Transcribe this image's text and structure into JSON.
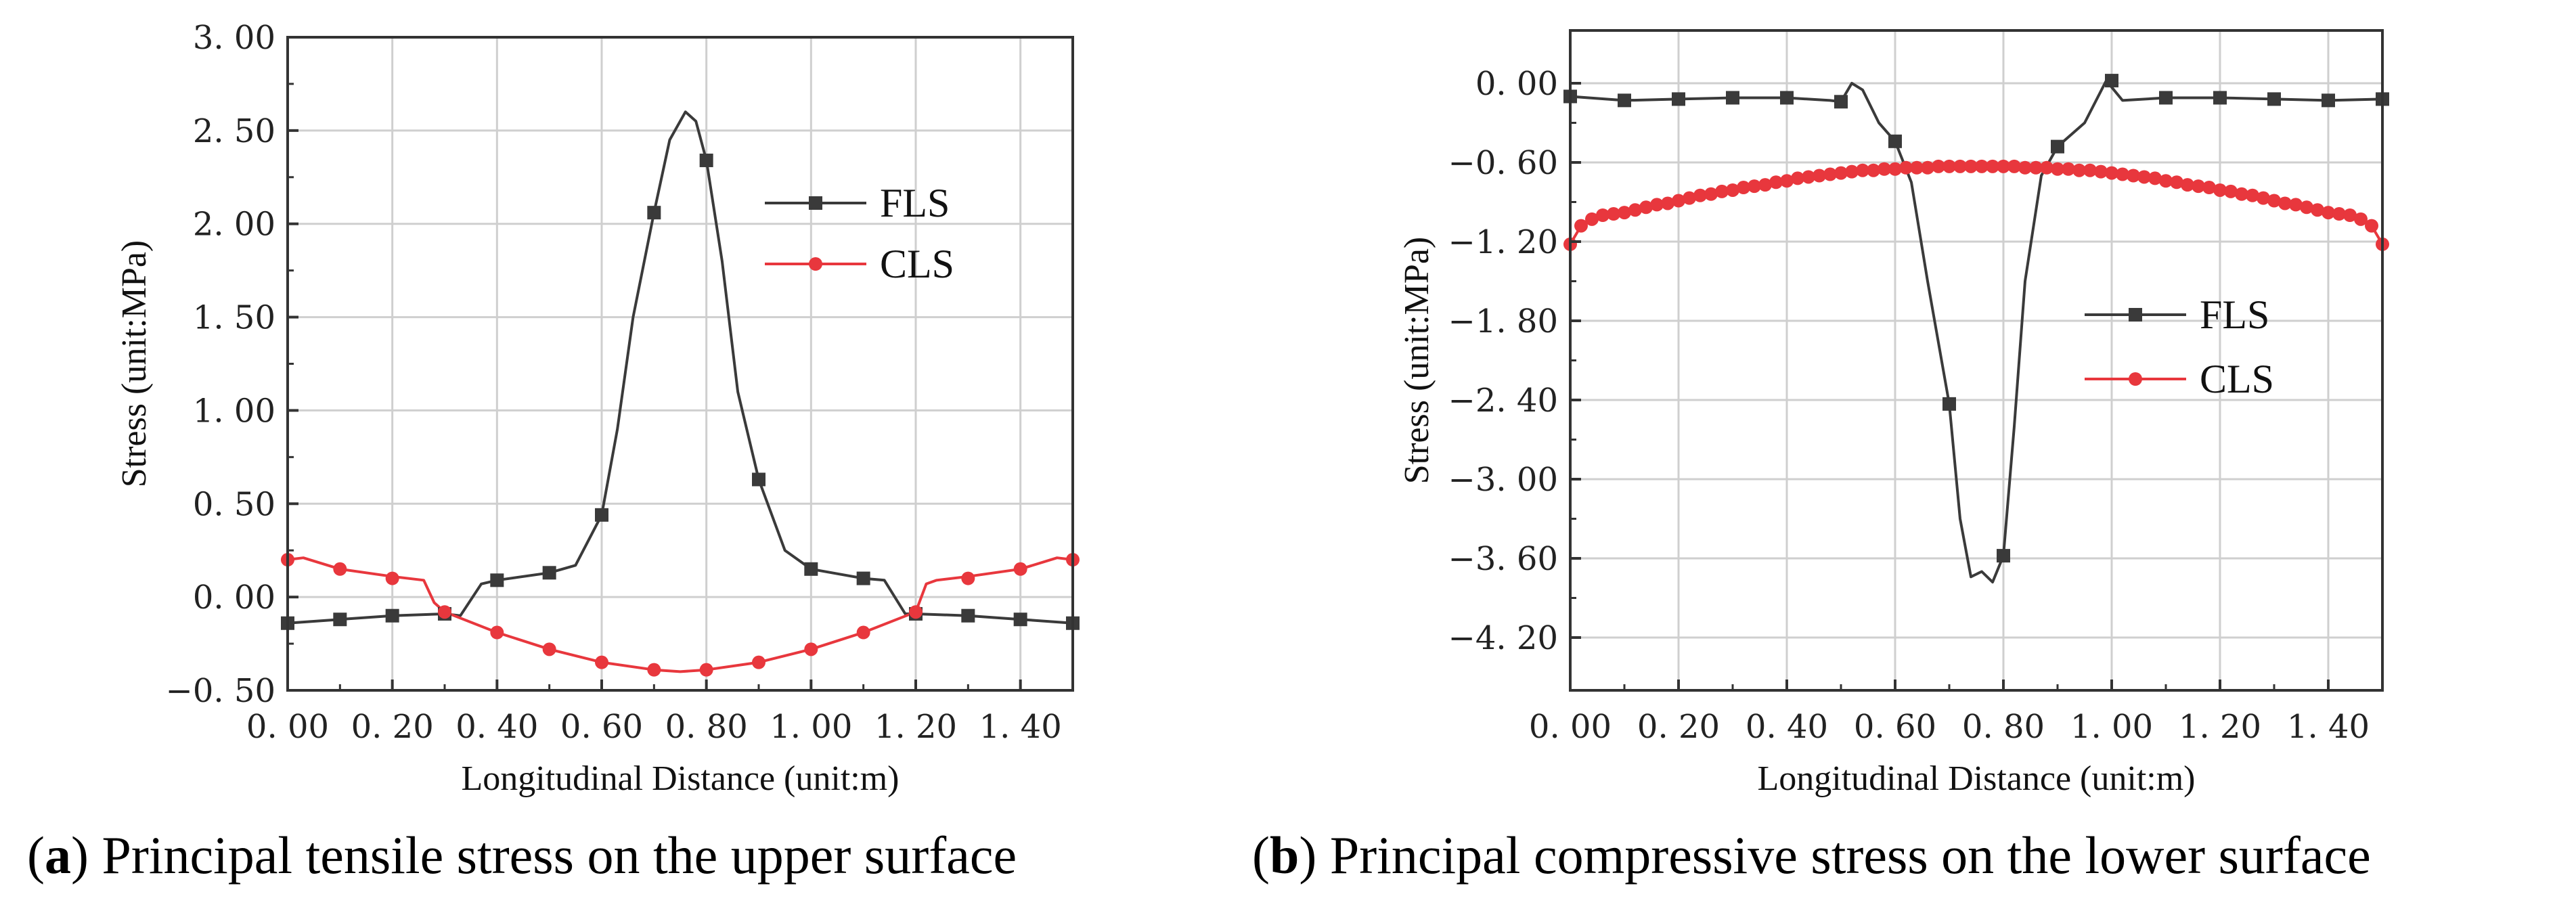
{
  "chart_data": [
    {
      "type": "line",
      "panel_letter": "a",
      "caption": "Principal tensile stress on the upper surface",
      "xlabel": "Longitudinal Distance (unit:m)",
      "ylabel": "Stress (unit:MPa)",
      "xlim": [
        0,
        1.5
      ],
      "ylim": [
        -0.5,
        3.0
      ],
      "xticks": [
        0,
        0.2,
        0.4,
        0.6,
        0.8,
        1.0,
        1.2,
        1.4
      ],
      "xtick_labels": [
        "0. 00",
        "0. 20",
        "0. 40",
        "0. 60",
        "0. 80",
        "1. 00",
        "1. 20",
        "1. 40"
      ],
      "yticks": [
        -0.5,
        0,
        0.5,
        1.0,
        1.5,
        2.0,
        2.5,
        3.0
      ],
      "ytick_labels": [
        "−0. 50",
        "0. 00",
        "0. 50",
        "1. 00",
        "1. 50",
        "2. 00",
        "2. 50",
        "3. 00"
      ],
      "grid": true,
      "legend_position": "upper-right",
      "series": [
        {
          "name": "FLS",
          "color": "#3a3a3a",
          "marker": "square",
          "markers": [
            [
              0.0,
              -0.14
            ],
            [
              0.1,
              -0.12
            ],
            [
              0.2,
              -0.1
            ],
            [
              0.3,
              -0.09
            ],
            [
              0.4,
              0.09
            ],
            [
              0.5,
              0.13
            ],
            [
              0.6,
              0.44
            ],
            [
              0.7,
              2.06
            ],
            [
              0.8,
              2.34
            ],
            [
              0.9,
              0.63
            ],
            [
              1.0,
              0.15
            ],
            [
              1.1,
              0.1
            ],
            [
              1.2,
              -0.09
            ],
            [
              1.3,
              -0.1
            ],
            [
              1.4,
              -0.12
            ],
            [
              1.5,
              -0.14
            ]
          ],
          "curve": [
            [
              0.0,
              -0.14
            ],
            [
              0.1,
              -0.12
            ],
            [
              0.2,
              -0.1
            ],
            [
              0.3,
              -0.09
            ],
            [
              0.33,
              -0.1
            ],
            [
              0.37,
              0.07
            ],
            [
              0.4,
              0.09
            ],
            [
              0.5,
              0.13
            ],
            [
              0.55,
              0.17
            ],
            [
              0.6,
              0.44
            ],
            [
              0.63,
              0.9
            ],
            [
              0.66,
              1.5
            ],
            [
              0.7,
              2.06
            ],
            [
              0.73,
              2.45
            ],
            [
              0.76,
              2.6
            ],
            [
              0.78,
              2.55
            ],
            [
              0.8,
              2.34
            ],
            [
              0.83,
              1.8
            ],
            [
              0.86,
              1.1
            ],
            [
              0.9,
              0.63
            ],
            [
              0.95,
              0.25
            ],
            [
              1.0,
              0.15
            ],
            [
              1.1,
              0.1
            ],
            [
              1.14,
              0.09
            ],
            [
              1.18,
              -0.09
            ],
            [
              1.2,
              -0.09
            ],
            [
              1.3,
              -0.1
            ],
            [
              1.4,
              -0.12
            ],
            [
              1.5,
              -0.14
            ]
          ]
        },
        {
          "name": "CLS",
          "color": "#e8373d",
          "marker": "circle",
          "markers": [
            [
              0.0,
              0.2
            ],
            [
              0.1,
              0.15
            ],
            [
              0.2,
              0.1
            ],
            [
              0.3,
              -0.08
            ],
            [
              0.4,
              -0.19
            ],
            [
              0.5,
              -0.28
            ],
            [
              0.6,
              -0.35
            ],
            [
              0.7,
              -0.39
            ],
            [
              0.8,
              -0.39
            ],
            [
              0.9,
              -0.35
            ],
            [
              1.0,
              -0.28
            ],
            [
              1.1,
              -0.19
            ],
            [
              1.2,
              -0.08
            ],
            [
              1.3,
              0.1
            ],
            [
              1.4,
              0.15
            ],
            [
              1.5,
              0.2
            ]
          ],
          "curve": [
            [
              0.0,
              0.2
            ],
            [
              0.03,
              0.21
            ],
            [
              0.1,
              0.15
            ],
            [
              0.2,
              0.11
            ],
            [
              0.26,
              0.09
            ],
            [
              0.28,
              -0.03
            ],
            [
              0.3,
              -0.08
            ],
            [
              0.4,
              -0.19
            ],
            [
              0.5,
              -0.28
            ],
            [
              0.6,
              -0.35
            ],
            [
              0.7,
              -0.39
            ],
            [
              0.75,
              -0.4
            ],
            [
              0.8,
              -0.39
            ],
            [
              0.9,
              -0.35
            ],
            [
              1.0,
              -0.28
            ],
            [
              1.1,
              -0.19
            ],
            [
              1.2,
              -0.08
            ],
            [
              1.22,
              0.07
            ],
            [
              1.24,
              0.09
            ],
            [
              1.3,
              0.11
            ],
            [
              1.4,
              0.15
            ],
            [
              1.47,
              0.21
            ],
            [
              1.5,
              0.2
            ]
          ]
        }
      ]
    },
    {
      "type": "line",
      "panel_letter": "b",
      "caption": "Principal compressive stress on the lower surface",
      "xlabel": "Longitudinal Distance (unit:m)",
      "ylabel": "Stress (unit:MPa)",
      "xlim": [
        0,
        1.5
      ],
      "ylim": [
        -4.6,
        0.4
      ],
      "xticks": [
        0,
        0.2,
        0.4,
        0.6,
        0.8,
        1.0,
        1.2,
        1.4
      ],
      "xtick_labels": [
        "0. 00",
        "0. 20",
        "0. 40",
        "0. 60",
        "0. 80",
        "1. 00",
        "1. 20",
        "1. 40"
      ],
      "yticks": [
        0,
        -0.6,
        -1.2,
        -1.8,
        -2.4,
        -3.0,
        -3.6,
        -4.2
      ],
      "ytick_labels": [
        "0. 00",
        "−0. 60",
        "−1. 20",
        "−1. 80",
        "−2. 40",
        "−3. 00",
        "−3. 60",
        "−4. 20"
      ],
      "grid": true,
      "legend_position": "center-right",
      "series": [
        {
          "name": "FLS",
          "color": "#3a3a3a",
          "marker": "square",
          "markers": [
            [
              0.0,
              -0.1
            ],
            [
              0.1,
              -0.13
            ],
            [
              0.2,
              -0.12
            ],
            [
              0.3,
              -0.11
            ],
            [
              0.4,
              -0.11
            ],
            [
              0.5,
              -0.14
            ],
            [
              0.6,
              -0.44
            ],
            [
              0.7,
              -2.43
            ],
            [
              0.8,
              -3.58
            ],
            [
              0.9,
              -0.48
            ],
            [
              1.0,
              0.02
            ],
            [
              1.1,
              -0.11
            ],
            [
              1.2,
              -0.11
            ],
            [
              1.3,
              -0.12
            ],
            [
              1.4,
              -0.13
            ],
            [
              1.5,
              -0.12
            ]
          ],
          "curve": [
            [
              0.0,
              -0.1
            ],
            [
              0.1,
              -0.13
            ],
            [
              0.2,
              -0.12
            ],
            [
              0.3,
              -0.11
            ],
            [
              0.4,
              -0.11
            ],
            [
              0.48,
              -0.13
            ],
            [
              0.5,
              -0.14
            ],
            [
              0.52,
              0.0
            ],
            [
              0.54,
              -0.05
            ],
            [
              0.57,
              -0.3
            ],
            [
              0.6,
              -0.44
            ],
            [
              0.63,
              -0.75
            ],
            [
              0.66,
              -1.5
            ],
            [
              0.7,
              -2.43
            ],
            [
              0.72,
              -3.3
            ],
            [
              0.74,
              -3.74
            ],
            [
              0.76,
              -3.7
            ],
            [
              0.78,
              -3.78
            ],
            [
              0.8,
              -3.58
            ],
            [
              0.82,
              -2.6
            ],
            [
              0.84,
              -1.5
            ],
            [
              0.87,
              -0.7
            ],
            [
              0.9,
              -0.48
            ],
            [
              0.95,
              -0.3
            ],
            [
              0.99,
              0.02
            ],
            [
              1.02,
              -0.13
            ],
            [
              1.1,
              -0.11
            ],
            [
              1.2,
              -0.11
            ],
            [
              1.3,
              -0.12
            ],
            [
              1.4,
              -0.13
            ],
            [
              1.5,
              -0.12
            ]
          ]
        },
        {
          "name": "CLS",
          "color": "#e8373d",
          "marker": "circle",
          "markers": [
            [
              0.0,
              -1.22
            ],
            [
              0.02,
              -1.08
            ],
            [
              0.04,
              -1.03
            ],
            [
              0.06,
              -1.0
            ],
            [
              0.08,
              -0.99
            ],
            [
              0.1,
              -0.98
            ],
            [
              0.12,
              -0.96
            ],
            [
              0.14,
              -0.94
            ],
            [
              0.16,
              -0.92
            ],
            [
              0.18,
              -0.91
            ],
            [
              0.2,
              -0.89
            ],
            [
              0.22,
              -0.87
            ],
            [
              0.24,
              -0.85
            ],
            [
              0.26,
              -0.84
            ],
            [
              0.28,
              -0.82
            ],
            [
              0.3,
              -0.81
            ],
            [
              0.32,
              -0.79
            ],
            [
              0.34,
              -0.78
            ],
            [
              0.36,
              -0.77
            ],
            [
              0.38,
              -0.75
            ],
            [
              0.4,
              -0.74
            ],
            [
              0.42,
              -0.72
            ],
            [
              0.44,
              -0.71
            ],
            [
              0.46,
              -0.7
            ],
            [
              0.48,
              -0.69
            ],
            [
              0.5,
              -0.68
            ],
            [
              0.52,
              -0.67
            ],
            [
              0.54,
              -0.66
            ],
            [
              0.56,
              -0.66
            ],
            [
              0.58,
              -0.65
            ],
            [
              0.6,
              -0.65
            ],
            [
              0.62,
              -0.64
            ],
            [
              0.64,
              -0.64
            ],
            [
              0.66,
              -0.64
            ],
            [
              0.68,
              -0.63
            ],
            [
              0.7,
              -0.63
            ],
            [
              0.72,
              -0.63
            ],
            [
              0.74,
              -0.63
            ],
            [
              0.76,
              -0.63
            ],
            [
              0.78,
              -0.63
            ],
            [
              0.8,
              -0.63
            ],
            [
              0.82,
              -0.63
            ],
            [
              0.84,
              -0.64
            ],
            [
              0.86,
              -0.64
            ],
            [
              0.88,
              -0.64
            ],
            [
              0.9,
              -0.65
            ],
            [
              0.92,
              -0.65
            ],
            [
              0.94,
              -0.66
            ],
            [
              0.96,
              -0.66
            ],
            [
              0.98,
              -0.67
            ],
            [
              1.0,
              -0.68
            ],
            [
              1.02,
              -0.69
            ],
            [
              1.04,
              -0.7
            ],
            [
              1.06,
              -0.71
            ],
            [
              1.08,
              -0.72
            ],
            [
              1.1,
              -0.74
            ],
            [
              1.12,
              -0.75
            ],
            [
              1.14,
              -0.77
            ],
            [
              1.16,
              -0.78
            ],
            [
              1.18,
              -0.79
            ],
            [
              1.2,
              -0.81
            ],
            [
              1.22,
              -0.82
            ],
            [
              1.24,
              -0.84
            ],
            [
              1.26,
              -0.85
            ],
            [
              1.28,
              -0.87
            ],
            [
              1.3,
              -0.89
            ],
            [
              1.32,
              -0.91
            ],
            [
              1.34,
              -0.92
            ],
            [
              1.36,
              -0.94
            ],
            [
              1.38,
              -0.96
            ],
            [
              1.4,
              -0.98
            ],
            [
              1.42,
              -0.99
            ],
            [
              1.44,
              -1.0
            ],
            [
              1.46,
              -1.03
            ],
            [
              1.48,
              -1.08
            ],
            [
              1.5,
              -1.22
            ]
          ]
        }
      ]
    }
  ]
}
